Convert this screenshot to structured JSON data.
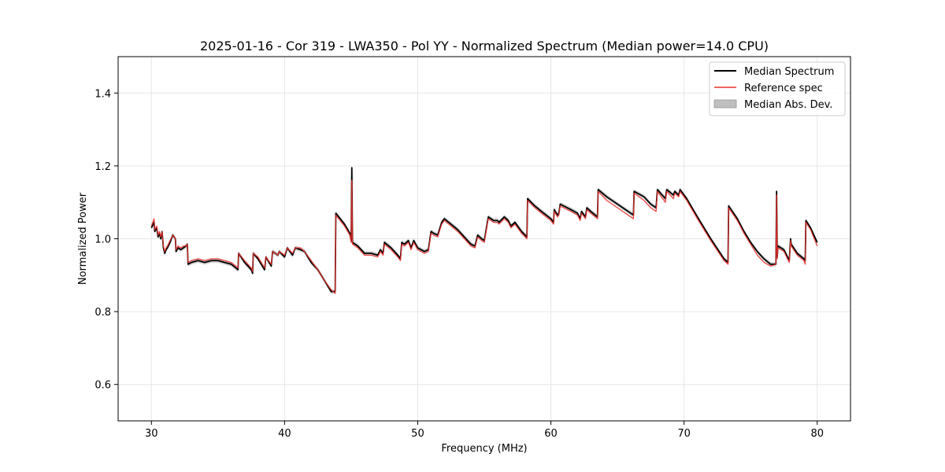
{
  "chart_data": {
    "type": "line",
    "title": "2025-01-16 - Cor 319 - LWA350 - Pol YY - Normalized Spectrum (Median power=14.0 CPU)",
    "xlabel": "Frequency (MHz)",
    "ylabel": "Normalized Power",
    "xlim": [
      27.5,
      82.5
    ],
    "ylim": [
      0.5,
      1.5
    ],
    "xticks": [
      30,
      40,
      50,
      60,
      70,
      80
    ],
    "yticks": [
      0.6,
      0.8,
      1.0,
      1.2,
      1.4
    ],
    "xtick_labels": [
      "30",
      "40",
      "50",
      "60",
      "70",
      "80"
    ],
    "ytick_labels": [
      "0.6",
      "0.8",
      "1.0",
      "1.2",
      "1.4"
    ],
    "grid": true,
    "legend_position": "top-right",
    "mad_halfwidth": 0.006,
    "series": [
      {
        "name": "Median Spectrum",
        "color": "#000000",
        "x": [
          30.0,
          30.2,
          30.25,
          30.4,
          30.5,
          30.6,
          30.7,
          30.8,
          30.9,
          31.0,
          31.1,
          31.2,
          31.4,
          31.6,
          31.8,
          31.85,
          32.0,
          32.2,
          32.4,
          32.6,
          32.7,
          32.75,
          33.0,
          33.5,
          34.0,
          34.5,
          35.0,
          35.5,
          36.0,
          36.5,
          36.55,
          37.0,
          37.5,
          37.6,
          37.65,
          38.0,
          38.5,
          38.6,
          39.0,
          39.1,
          39.5,
          39.6,
          40.0,
          40.2,
          40.6,
          40.8,
          41.2,
          41.5,
          42.0,
          42.5,
          43.0,
          43.5,
          43.8,
          43.85,
          44.5,
          44.9,
          45.0,
          45.05,
          45.1,
          45.5,
          46.0,
          46.5,
          47.0,
          47.2,
          47.4,
          47.5,
          48.0,
          48.5,
          48.7,
          48.8,
          49.0,
          49.3,
          49.5,
          49.7,
          50.0,
          50.5,
          50.8,
          51.0,
          51.2,
          51.5,
          51.8,
          52.0,
          52.5,
          53.0,
          53.5,
          54.0,
          54.3,
          54.5,
          54.8,
          55.0,
          55.3,
          55.7,
          56.0,
          56.1,
          56.5,
          56.8,
          57.0,
          57.3,
          57.8,
          58.2,
          58.25,
          58.8,
          59.3,
          60.0,
          60.2,
          60.25,
          60.5,
          60.6,
          60.7,
          61.5,
          62.0,
          62.2,
          62.3,
          62.6,
          62.7,
          63.0,
          63.5,
          63.55,
          64.2,
          65.0,
          65.8,
          66.2,
          66.25,
          67.0,
          67.5,
          67.9,
          68.0,
          68.6,
          68.7,
          69.2,
          69.3,
          69.6,
          69.7,
          70.2,
          71.0,
          72.0,
          73.0,
          73.3,
          73.35,
          74.0,
          74.5,
          75.0,
          75.5,
          76.0,
          76.5,
          76.9,
          76.95,
          77.0,
          77.05,
          77.5,
          77.9,
          78.0,
          78.05,
          78.5,
          79.0,
          79.1,
          79.15,
          79.5,
          80.0
        ],
        "values": [
          1.03,
          1.045,
          1.02,
          1.03,
          1.005,
          1.015,
          1.0,
          1.02,
          0.975,
          0.96,
          0.97,
          0.975,
          0.99,
          1.01,
          1.0,
          0.965,
          0.975,
          0.97,
          0.975,
          0.98,
          0.985,
          0.93,
          0.935,
          0.94,
          0.935,
          0.94,
          0.94,
          0.935,
          0.93,
          0.915,
          0.96,
          0.935,
          0.915,
          0.905,
          0.96,
          0.945,
          0.915,
          0.95,
          0.925,
          0.965,
          0.955,
          0.965,
          0.95,
          0.975,
          0.955,
          0.975,
          0.97,
          0.965,
          0.935,
          0.915,
          0.885,
          0.855,
          0.855,
          1.07,
          1.04,
          1.015,
          0.995,
          1.195,
          0.99,
          0.98,
          0.96,
          0.96,
          0.955,
          0.97,
          0.96,
          0.99,
          0.975,
          0.955,
          0.945,
          0.99,
          0.985,
          0.995,
          0.975,
          0.995,
          0.975,
          0.965,
          0.97,
          1.02,
          1.015,
          1.01,
          1.045,
          1.055,
          1.04,
          1.025,
          1.005,
          0.985,
          0.98,
          1.01,
          1.0,
          0.995,
          1.06,
          1.05,
          1.05,
          1.045,
          1.06,
          1.05,
          1.035,
          1.045,
          1.02,
          1.005,
          1.11,
          1.09,
          1.075,
          1.055,
          1.045,
          1.08,
          1.065,
          1.07,
          1.095,
          1.08,
          1.07,
          1.055,
          1.075,
          1.06,
          1.085,
          1.075,
          1.06,
          1.135,
          1.115,
          1.095,
          1.075,
          1.065,
          1.13,
          1.115,
          1.095,
          1.085,
          1.135,
          1.11,
          1.135,
          1.12,
          1.13,
          1.12,
          1.135,
          1.11,
          1.06,
          1.0,
          0.945,
          0.935,
          1.09,
          1.055,
          1.02,
          0.99,
          0.965,
          0.945,
          0.93,
          0.93,
          1.13,
          0.95,
          0.98,
          0.97,
          0.94,
          1.0,
          0.985,
          0.96,
          0.945,
          0.94,
          1.05,
          1.03,
          0.99
        ]
      },
      {
        "name": "Reference spec",
        "color": "#e8322d",
        "x": [
          30.0,
          30.2,
          30.25,
          30.4,
          30.5,
          30.6,
          30.7,
          30.8,
          30.9,
          31.0,
          31.1,
          31.2,
          31.4,
          31.6,
          31.8,
          31.85,
          32.0,
          32.2,
          32.4,
          32.6,
          32.7,
          32.75,
          33.0,
          33.5,
          34.0,
          34.5,
          35.0,
          35.5,
          36.0,
          36.5,
          36.55,
          37.0,
          37.5,
          37.6,
          37.65,
          38.0,
          38.5,
          38.6,
          39.0,
          39.1,
          39.5,
          39.6,
          40.0,
          40.2,
          40.6,
          40.8,
          41.2,
          41.5,
          42.0,
          42.5,
          43.0,
          43.5,
          43.8,
          43.85,
          44.5,
          44.9,
          45.0,
          45.05,
          45.1,
          45.5,
          46.0,
          46.5,
          47.0,
          47.2,
          47.4,
          47.5,
          48.0,
          48.5,
          48.7,
          48.8,
          49.0,
          49.3,
          49.5,
          49.7,
          50.0,
          50.5,
          50.8,
          51.0,
          51.2,
          51.5,
          51.8,
          52.0,
          52.5,
          53.0,
          53.5,
          54.0,
          54.3,
          54.5,
          54.8,
          55.0,
          55.3,
          55.7,
          56.0,
          56.1,
          56.5,
          56.8,
          57.0,
          57.3,
          57.8,
          58.2,
          58.25,
          58.8,
          59.3,
          60.0,
          60.2,
          60.25,
          60.5,
          60.6,
          60.7,
          61.5,
          62.0,
          62.2,
          62.3,
          62.6,
          62.7,
          63.0,
          63.5,
          63.55,
          64.2,
          65.0,
          65.8,
          66.2,
          66.25,
          67.0,
          67.5,
          67.9,
          68.0,
          68.6,
          68.7,
          69.2,
          69.3,
          69.6,
          69.7,
          70.2,
          71.0,
          72.0,
          73.0,
          73.3,
          73.35,
          74.0,
          74.5,
          75.0,
          75.5,
          76.0,
          76.5,
          76.9,
          76.95,
          77.0,
          77.05,
          77.5,
          77.9,
          78.0,
          78.05,
          78.5,
          79.0,
          79.1,
          79.15,
          79.5,
          80.0
        ],
        "values": [
          1.035,
          1.055,
          1.025,
          1.035,
          1.01,
          1.02,
          1.005,
          1.02,
          0.98,
          0.965,
          0.975,
          0.98,
          0.995,
          1.01,
          1.0,
          0.97,
          0.98,
          0.975,
          0.98,
          0.98,
          0.985,
          0.935,
          0.94,
          0.945,
          0.94,
          0.945,
          0.945,
          0.94,
          0.935,
          0.92,
          0.96,
          0.94,
          0.92,
          0.91,
          0.96,
          0.95,
          0.92,
          0.95,
          0.93,
          0.965,
          0.955,
          0.965,
          0.955,
          0.975,
          0.96,
          0.975,
          0.975,
          0.965,
          0.94,
          0.915,
          0.885,
          0.86,
          0.85,
          1.065,
          1.035,
          1.01,
          0.99,
          1.16,
          0.985,
          0.975,
          0.955,
          0.955,
          0.95,
          0.965,
          0.955,
          0.985,
          0.97,
          0.95,
          0.94,
          0.985,
          0.98,
          0.99,
          0.97,
          0.99,
          0.97,
          0.96,
          0.965,
          1.015,
          1.01,
          1.005,
          1.04,
          1.05,
          1.035,
          1.02,
          1.0,
          0.98,
          0.975,
          1.005,
          0.995,
          0.99,
          1.055,
          1.045,
          1.045,
          1.04,
          1.055,
          1.045,
          1.03,
          1.04,
          1.015,
          1.0,
          1.105,
          1.085,
          1.07,
          1.05,
          1.04,
          1.075,
          1.06,
          1.065,
          1.09,
          1.075,
          1.065,
          1.05,
          1.07,
          1.055,
          1.08,
          1.07,
          1.055,
          1.13,
          1.105,
          1.085,
          1.065,
          1.055,
          1.125,
          1.105,
          1.085,
          1.075,
          1.13,
          1.1,
          1.13,
          1.11,
          1.125,
          1.115,
          1.13,
          1.105,
          1.055,
          0.995,
          0.94,
          0.93,
          1.085,
          1.05,
          1.015,
          0.985,
          0.955,
          0.935,
          0.925,
          0.93,
          1.12,
          0.945,
          0.975,
          0.965,
          0.935,
          0.995,
          0.98,
          0.955,
          0.94,
          0.93,
          1.045,
          1.025,
          0.98
        ]
      }
    ],
    "legend": [
      {
        "label": "Median Spectrum",
        "kind": "line",
        "color": "#000000"
      },
      {
        "label": "Reference spec",
        "kind": "line",
        "color": "#e8322d"
      },
      {
        "label": "Median Abs. Dev.",
        "kind": "fill",
        "color": "#bfbfbf"
      }
    ]
  }
}
